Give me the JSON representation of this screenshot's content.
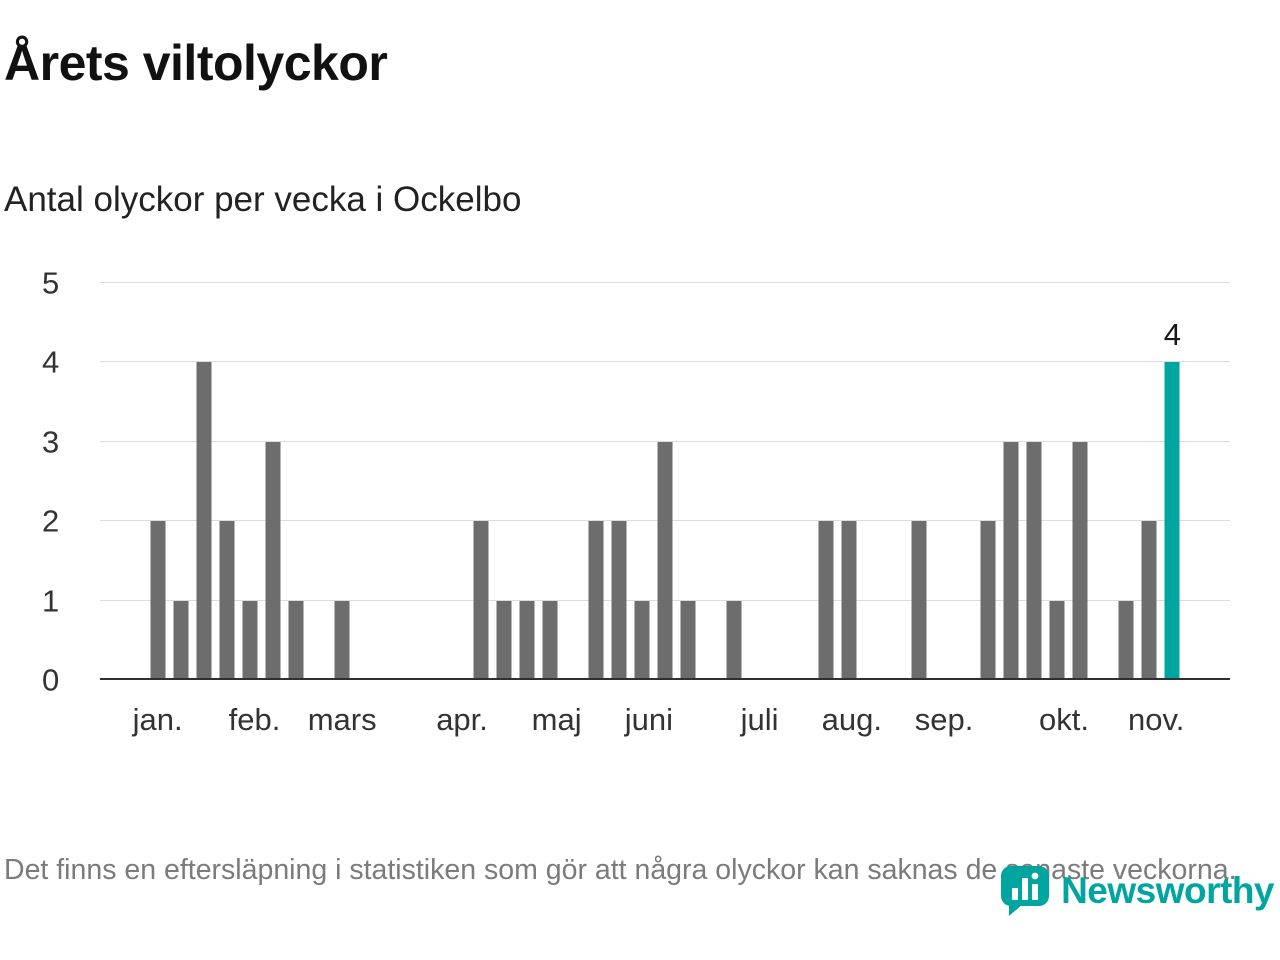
{
  "header": {
    "title": "Årets viltolyckor",
    "subtitle": "Antal olyckor per vecka i Ockelbo"
  },
  "chart_data": {
    "type": "bar",
    "x_unit": "week",
    "x_range": [
      1,
      49
    ],
    "values": [
      0,
      0,
      2,
      1,
      4,
      2,
      1,
      3,
      1,
      0,
      1,
      0,
      0,
      0,
      0,
      0,
      2,
      1,
      1,
      1,
      0,
      2,
      2,
      1,
      3,
      1,
      0,
      1,
      0,
      0,
      0,
      2,
      2,
      0,
      0,
      2,
      0,
      0,
      2,
      3,
      3,
      1,
      3,
      0,
      1,
      2,
      4,
      0,
      0
    ],
    "highlight_week": 47,
    "annotation": {
      "week": 47,
      "value": 4,
      "text": "4"
    },
    "ylim": [
      0,
      5
    ],
    "yticks": [
      0,
      1,
      2,
      3,
      4,
      5
    ],
    "grid": true,
    "legend": false,
    "months": [
      {
        "label": "jan.",
        "week": 3.0
      },
      {
        "label": "feb.",
        "week": 7.2
      },
      {
        "label": "mars",
        "week": 11.0
      },
      {
        "label": "apr.",
        "week": 16.2
      },
      {
        "label": "maj",
        "week": 20.3
      },
      {
        "label": "juni",
        "week": 24.3
      },
      {
        "label": "juli",
        "week": 29.1
      },
      {
        "label": "aug.",
        "week": 33.1
      },
      {
        "label": "sep.",
        "week": 37.1
      },
      {
        "label": "okt.",
        "week": 42.3
      },
      {
        "label": "nov.",
        "week": 46.3
      }
    ],
    "colors": {
      "bar": "#6d6d6d",
      "highlight": "#00a5a0",
      "grid": "#dcdcdc",
      "axis": "#2f2f2f"
    }
  },
  "footer": {
    "note": "Det finns en eftersläpning i statistiken som gör att några olyckor kan saknas de senaste veckorna.",
    "brand": "Newsworthy",
    "brand_color": "#00a5a0",
    "brand_icon": "newsworthy-bubble-barchart-icon"
  }
}
